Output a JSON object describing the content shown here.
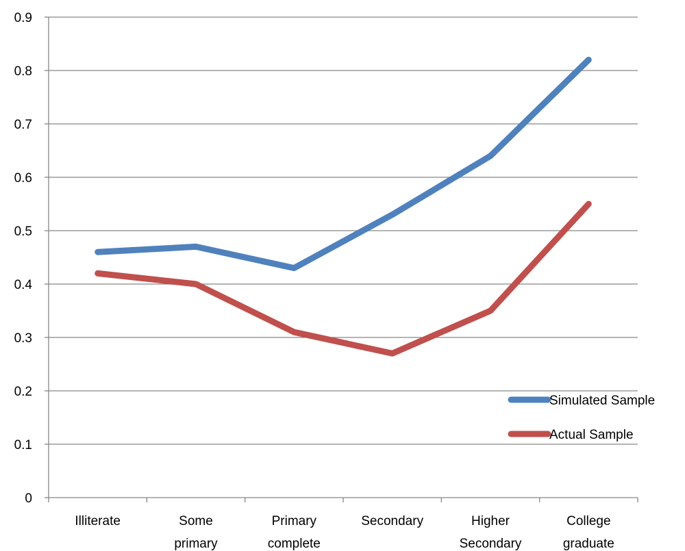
{
  "chart_data": {
    "type": "line",
    "title": "",
    "xlabel": "",
    "ylabel": "",
    "categories": [
      [
        "Illiterate"
      ],
      [
        "Some",
        "primary"
      ],
      [
        "Primary",
        "complete"
      ],
      [
        "Secondary"
      ],
      [
        "Higher",
        "Secondary"
      ],
      [
        "College",
        "graduate"
      ]
    ],
    "series": [
      {
        "name": "Simulated Sample",
        "color": "#4F81BD",
        "values": [
          0.46,
          0.47,
          0.43,
          0.53,
          0.64,
          0.82
        ]
      },
      {
        "name": "Actual Sample",
        "color": "#C0504D",
        "values": [
          0.42,
          0.4,
          0.31,
          0.27,
          0.35,
          0.55
        ]
      }
    ],
    "ylim": [
      0,
      0.9
    ],
    "yticks": [
      "0",
      "0.1",
      "0.2",
      "0.3",
      "0.4",
      "0.5",
      "0.6",
      "0.7",
      "0.8",
      "0.9"
    ],
    "grid": "horizontal",
    "legend": "right"
  }
}
